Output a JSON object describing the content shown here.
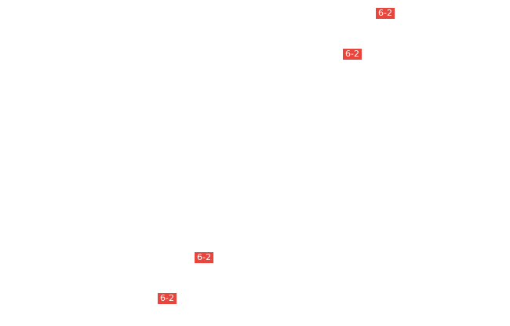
{
  "badges": [
    {
      "label": "6-2"
    },
    {
      "label": "6-2"
    },
    {
      "label": "6-2"
    },
    {
      "label": "6-2"
    }
  ],
  "colors": {
    "badge_background": "#e8453c",
    "badge_text": "#ffffff",
    "page_background": "#ffffff"
  }
}
